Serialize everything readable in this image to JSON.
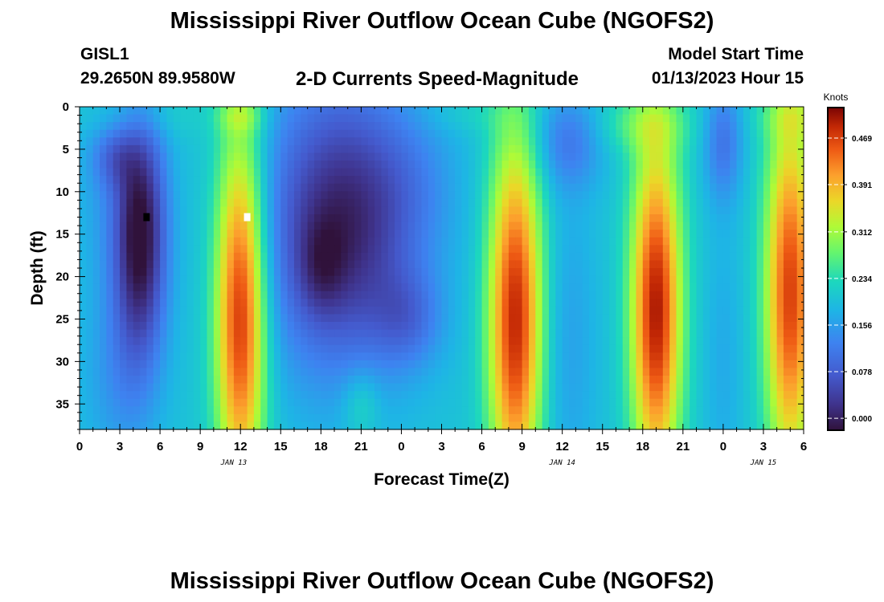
{
  "title": "Mississippi River Outflow Ocean Cube (NGOFS2)",
  "station": {
    "id": "GISL1",
    "coords": "29.2650N  89.9580W"
  },
  "subtitle": "2-D Currents Speed-Magnitude",
  "model_start": {
    "label": "Model Start Time",
    "value": "01/13/2023 Hour 15"
  },
  "footer_title": "Mississippi River Outflow Ocean Cube (NGOFS2)",
  "chart_data": {
    "type": "heatmap",
    "title": "2-D Currents Speed-Magnitude",
    "xlabel": "Forecast Time(Z)",
    "ylabel": "Depth (ft)",
    "x_unit": "forecast hour from 00Z Jan 13",
    "xlim": [
      0,
      54
    ],
    "ylim": [
      0,
      38
    ],
    "y_inverted": true,
    "x_ticks": [
      0,
      3,
      6,
      9,
      12,
      15,
      18,
      21,
      24,
      27,
      30,
      33,
      36,
      39,
      42,
      45,
      48,
      51,
      54
    ],
    "x_tick_labels": [
      "0",
      "3",
      "6",
      "9",
      "12",
      "15",
      "18",
      "21",
      "0",
      "3",
      "6",
      "9",
      "12",
      "15",
      "18",
      "21",
      "0",
      "3",
      "6"
    ],
    "y_ticks": [
      0,
      5,
      10,
      15,
      20,
      25,
      30,
      35
    ],
    "y_tick_labels": [
      "0",
      "5",
      "10",
      "15",
      "20",
      "25",
      "30",
      "35"
    ],
    "date_labels": [
      {
        "text": "JAN 13",
        "x": 11.5
      },
      {
        "text": "JAN 14",
        "x": 36
      },
      {
        "text": "JAN 15",
        "x": 51
      }
    ],
    "colorbar": {
      "label": "Knots",
      "vmin": -0.02,
      "vmax": 0.52,
      "ticks": [
        0.0,
        0.078,
        0.156,
        0.234,
        0.312,
        0.391,
        0.469
      ],
      "tick_labels": [
        "0.000",
        "0.078",
        "0.156",
        "0.234",
        "0.312",
        "0.391",
        "0.469"
      ]
    },
    "field_description": "Speed field approximated as a base level plus gaussian features; amplitude in knots, centers in forecast hours / feet.",
    "base_value": 0.2,
    "features": [
      {
        "x": 4.5,
        "y": 15,
        "sx": 1.4,
        "sy": 10,
        "amp": -0.23
      },
      {
        "x": 2.5,
        "y": 6,
        "sx": 1.1,
        "sy": 2.5,
        "amp": -0.06
      },
      {
        "x": 1.5,
        "y": 9,
        "sx": 1.6,
        "sy": 9,
        "amp": -0.03
      },
      {
        "x": 3,
        "y": 32,
        "sx": 2,
        "sy": 8,
        "amp": -0.05
      },
      {
        "x": 4.5,
        "y": 1,
        "sx": 3,
        "sy": 2,
        "amp": 0.03
      },
      {
        "x": 12,
        "y": 24,
        "sx": 1.3,
        "sy": 15,
        "amp": 0.29
      },
      {
        "x": 12,
        "y": 1,
        "sx": 1.2,
        "sy": 1.5,
        "amp": 0.06
      },
      {
        "x": 19.5,
        "y": 14,
        "sx": 4,
        "sy": 12,
        "amp": -0.2
      },
      {
        "x": 18,
        "y": 19,
        "sx": 1.2,
        "sy": 4,
        "amp": -0.05
      },
      {
        "x": 24.5,
        "y": 25,
        "sx": 1.8,
        "sy": 4,
        "amp": -0.07
      },
      {
        "x": 25,
        "y": 9,
        "sx": 2.5,
        "sy": 6,
        "amp": -0.03
      },
      {
        "x": 21,
        "y": 35,
        "sx": 1,
        "sy": 3,
        "amp": 0.05
      },
      {
        "x": 29,
        "y": 1,
        "sx": 2.5,
        "sy": 1.5,
        "amp": 0.02
      },
      {
        "x": 32.5,
        "y": 25,
        "sx": 1.4,
        "sy": 15,
        "amp": 0.29
      },
      {
        "x": 36.5,
        "y": 4,
        "sx": 1.8,
        "sy": 4,
        "amp": -0.08
      },
      {
        "x": 36.5,
        "y": 28,
        "sx": 1.5,
        "sy": 14,
        "amp": -0.04
      },
      {
        "x": 43,
        "y": 24,
        "sx": 1.3,
        "sy": 14,
        "amp": 0.3
      },
      {
        "x": 42,
        "y": 2,
        "sx": 2.5,
        "sy": 2.5,
        "amp": 0.06
      },
      {
        "x": 48,
        "y": 4,
        "sx": 1,
        "sy": 5,
        "amp": -0.09
      },
      {
        "x": 48,
        "y": 30,
        "sx": 1,
        "sy": 12,
        "amp": -0.03
      },
      {
        "x": 53,
        "y": 22,
        "sx": 1.3,
        "sy": 15,
        "amp": 0.27
      },
      {
        "x": 53.5,
        "y": 1,
        "sx": 2,
        "sy": 2,
        "amp": 0.05
      }
    ],
    "markers": [
      {
        "x": 5,
        "y": 13,
        "color": "#000000",
        "name": "marker-black"
      },
      {
        "x": 12.5,
        "y": 13,
        "color": "#ffffff",
        "name": "marker-white"
      }
    ]
  }
}
